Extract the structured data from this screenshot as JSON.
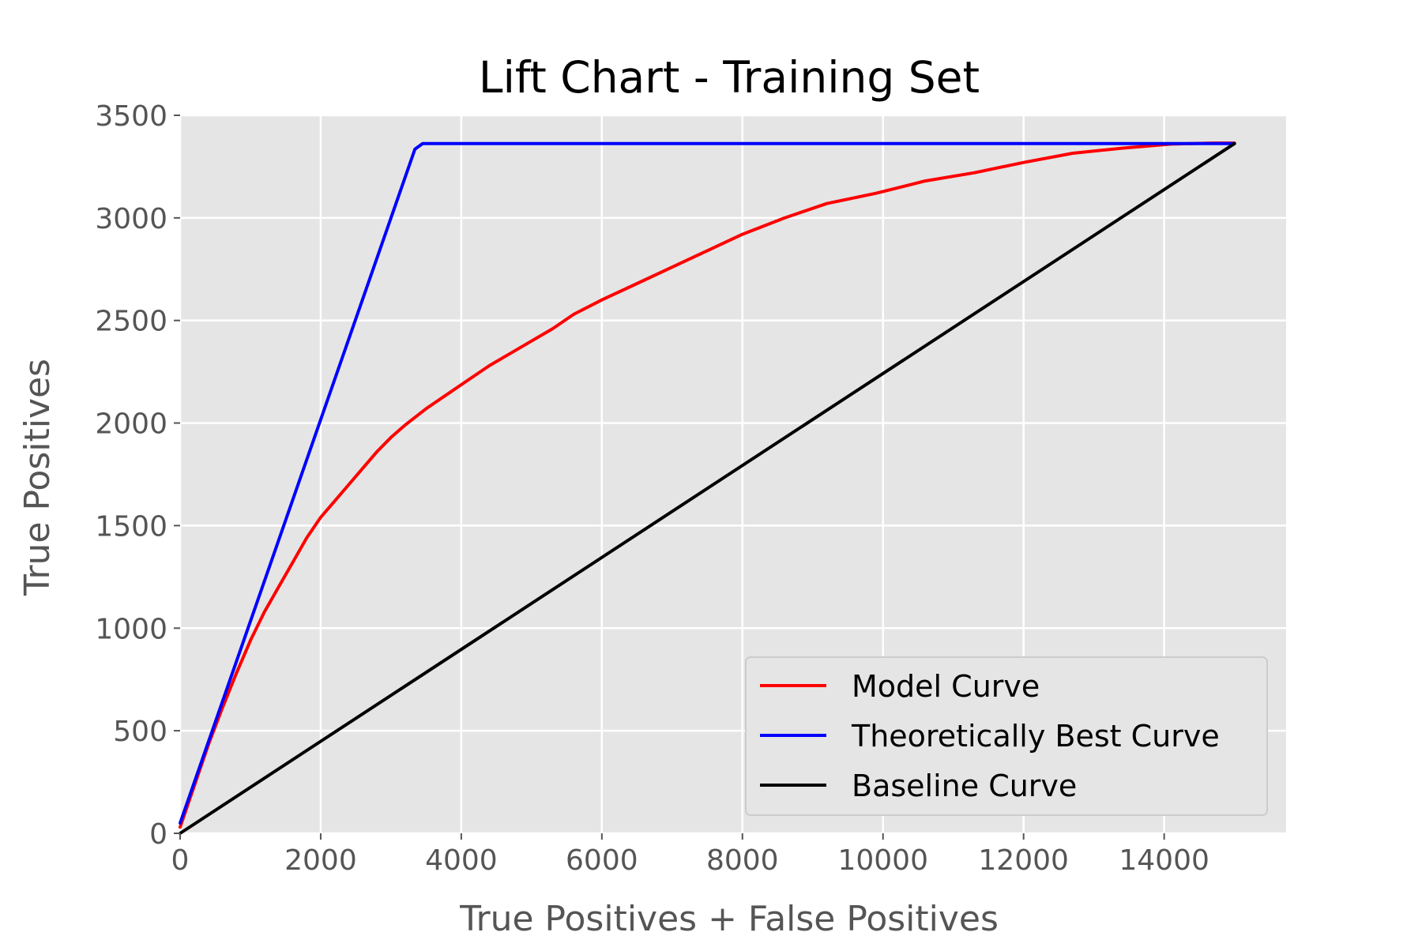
{
  "chart_data": {
    "type": "line",
    "title": "Lift Chart - Training Set",
    "xlabel": "True Positives + False Positives",
    "ylabel": "True Positives",
    "xlim": [
      0,
      15735
    ],
    "ylim": [
      0,
      3500
    ],
    "xticks": [
      0,
      2000,
      4000,
      6000,
      8000,
      10000,
      12000,
      14000
    ],
    "yticks": [
      0,
      500,
      1000,
      1500,
      2000,
      2500,
      3000,
      3500
    ],
    "grid": true,
    "legend_position": "lower-right",
    "series": [
      {
        "name": "Model Curve",
        "color": "#ff0000",
        "x": [
          0,
          200,
          400,
          600,
          800,
          1000,
          1200,
          1400,
          1600,
          1800,
          2000,
          2200,
          2400,
          2600,
          2800,
          3000,
          3200,
          3500,
          3800,
          4100,
          4400,
          4700,
          5000,
          5300,
          5600,
          6000,
          6500,
          7000,
          7500,
          8000,
          8600,
          9200,
          9900,
          10600,
          11300,
          12000,
          12700,
          13400,
          14100,
          14700,
          15000
        ],
        "y": [
          30,
          230,
          430,
          610,
          780,
          940,
          1080,
          1200,
          1320,
          1440,
          1540,
          1620,
          1700,
          1780,
          1860,
          1930,
          1990,
          2070,
          2140,
          2210,
          2280,
          2340,
          2400,
          2460,
          2530,
          2600,
          2680,
          2760,
          2840,
          2920,
          3000,
          3070,
          3120,
          3180,
          3220,
          3270,
          3315,
          3340,
          3360,
          3365,
          3365
        ]
      },
      {
        "name": "Theoretically Best Curve",
        "color": "#0000ff",
        "x": [
          0,
          3340,
          3450,
          15000
        ],
        "y": [
          50,
          3335,
          3362,
          3362
        ]
      },
      {
        "name": "Baseline Curve",
        "color": "#000000",
        "x": [
          0,
          15000
        ],
        "y": [
          0,
          3362
        ]
      }
    ]
  }
}
